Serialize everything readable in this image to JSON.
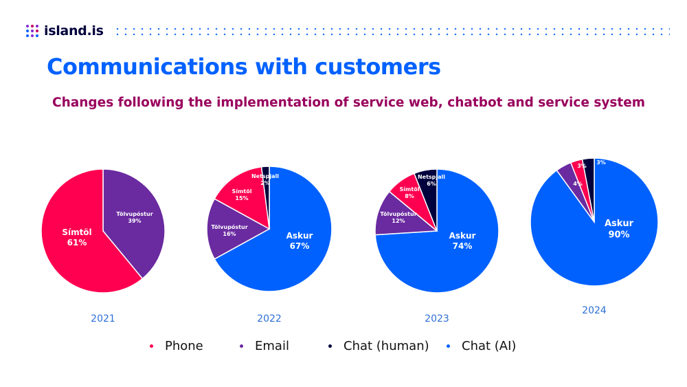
{
  "brand": {
    "name": "island.is",
    "dot_colors": [
      "#7f2bd6",
      "#c5005f",
      "#7f2bd6",
      "#0061ff",
      "#7f2bd6",
      "#c5005f",
      "#0061ff",
      "#7f2bd6",
      "#0061ff"
    ]
  },
  "colors": {
    "Phone": "#ff0050",
    "Email": "#6a2aa0",
    "Chat (human)": "#00003c",
    "Chat (AI)": "#0061ff"
  },
  "chart_data": {
    "type": "pie",
    "title": "Communications with customers",
    "subtitle": "Changes following the implementation of service web, chatbot and service system",
    "legend": [
      "Phone",
      "Email",
      "Chat (human)",
      "Chat (AI)"
    ],
    "charts": [
      {
        "year": "2021",
        "slices": [
          {
            "label": "Tölvupóstur",
            "category": "Email",
            "value": 39,
            "text": "39%"
          },
          {
            "label": "Símtöl",
            "category": "Phone",
            "value": 61,
            "text": "61%"
          }
        ]
      },
      {
        "year": "2022",
        "slices": [
          {
            "label": "Askur",
            "category": "Chat (AI)",
            "value": 67,
            "text": "67%"
          },
          {
            "label": "Tölvupóstur",
            "category": "Email",
            "value": 16,
            "text": "16%"
          },
          {
            "label": "Símtöl",
            "category": "Phone",
            "value": 15,
            "text": "15%"
          },
          {
            "label": "Netspjall",
            "category": "Chat (human)",
            "value": 2,
            "text": "2%"
          }
        ]
      },
      {
        "year": "2023",
        "slices": [
          {
            "label": "Askur",
            "category": "Chat (AI)",
            "value": 74,
            "text": "74%"
          },
          {
            "label": "Tölvupóstur",
            "category": "Email",
            "value": 12,
            "text": "12%"
          },
          {
            "label": "Símtöl",
            "category": "Phone",
            "value": 8,
            "text": "8%"
          },
          {
            "label": "Netspjall",
            "category": "Chat (human)",
            "value": 6,
            "text": "6%"
          }
        ]
      },
      {
        "year": "2024",
        "slices": [
          {
            "label": "Askur",
            "category": "Chat (AI)",
            "value": 90,
            "text": "90%"
          },
          {
            "label": "",
            "category": "Email",
            "value": 4,
            "text": "4%"
          },
          {
            "label": "",
            "category": "Phone",
            "value": 3,
            "text": "3%"
          },
          {
            "label": "",
            "category": "Chat (human)",
            "value": 3,
            "text": "3%"
          }
        ]
      }
    ]
  }
}
